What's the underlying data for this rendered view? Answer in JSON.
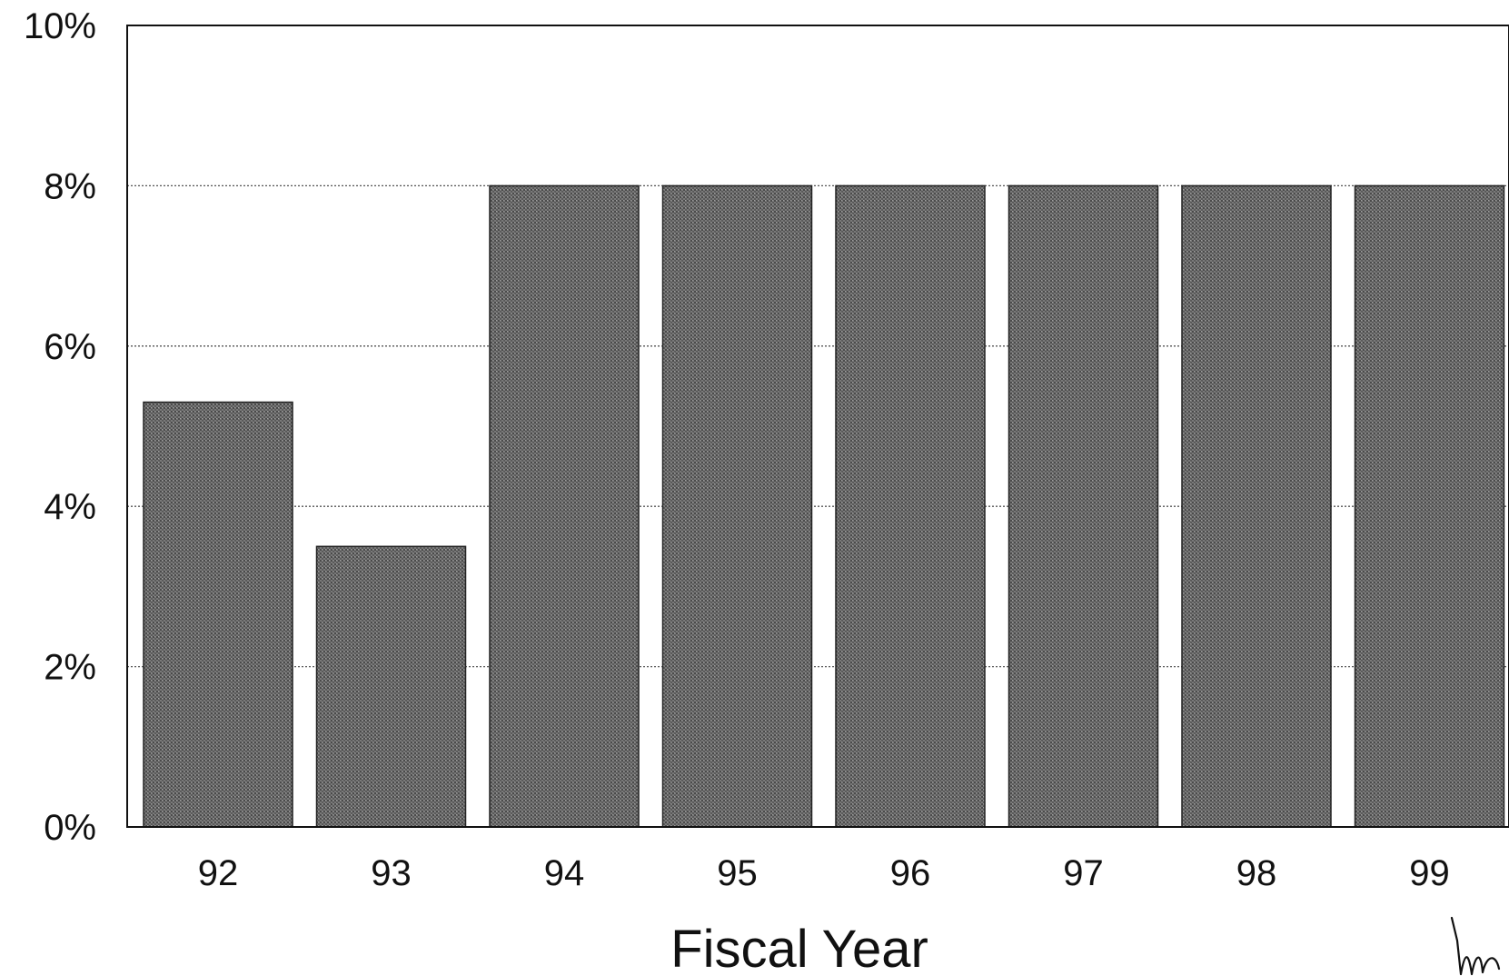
{
  "chart_data": {
    "type": "bar",
    "categories": [
      "92",
      "93",
      "94",
      "95",
      "96",
      "97",
      "98",
      "99"
    ],
    "values": [
      5.3,
      3.5,
      8.0,
      8.0,
      8.0,
      8.0,
      8.0,
      8.0
    ],
    "title": "",
    "xlabel": "Fiscal Year",
    "ylabel": "",
    "ylim": [
      0,
      10
    ],
    "yticks": [
      "0%",
      "2%",
      "4%",
      "6%",
      "8%",
      "10%"
    ],
    "grid": true,
    "legend": "none",
    "colors": {
      "bar": "#6e6e6e",
      "grid": "#555555",
      "frame": "#111111"
    }
  }
}
